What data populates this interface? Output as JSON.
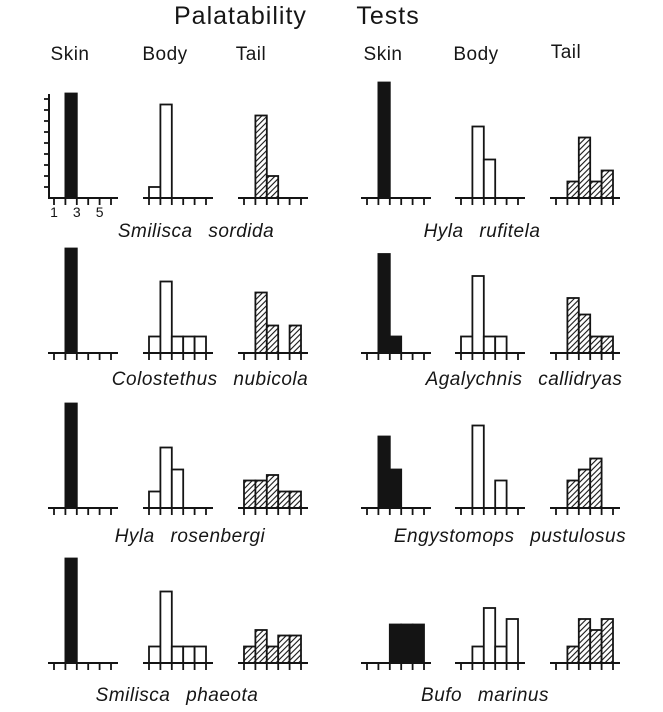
{
  "figure": {
    "title": "Palatability Tests",
    "column_headers": [
      "Skin",
      "Body",
      "Tail"
    ],
    "x_tick_labels": [
      "1",
      "3",
      "5"
    ]
  },
  "colors": {
    "ink": "#141414",
    "paper": "#ffffff"
  },
  "chart_data": {
    "type": "bar",
    "subtype": "histogram-small-multiples",
    "title": "Palatability Tests",
    "tests": [
      "Skin",
      "Body",
      "Tail"
    ],
    "bar_styles": {
      "Skin": "solid black fill",
      "Body": "open white fill",
      "Tail": "diagonal hatch fill"
    },
    "x_axis": {
      "ticks": [
        1,
        2,
        3,
        4,
        5,
        6
      ],
      "labeled_ticks": [
        1,
        3,
        5
      ],
      "tick_labels": [
        "1",
        "3",
        "5"
      ]
    },
    "y_axis": {
      "unlabeled_tick_count": 9,
      "range": [
        0,
        10.5
      ],
      "shown_on_first_panel_only": true
    },
    "legend": "none",
    "grid": false,
    "species": [
      {
        "name": "Smilisca sordida",
        "skin": [
          [
            2,
            9.5
          ]
        ],
        "body": [
          [
            1,
            1
          ],
          [
            2,
            8.5
          ]
        ],
        "tail": [
          [
            2,
            7.5
          ],
          [
            3,
            2
          ]
        ]
      },
      {
        "name": "Hyla rufitela",
        "skin": [
          [
            2,
            10.5
          ]
        ],
        "body": [
          [
            2,
            6.5
          ],
          [
            3,
            3.5
          ]
        ],
        "tail": [
          [
            2,
            1.5
          ],
          [
            3,
            5.5
          ],
          [
            4,
            1.5
          ],
          [
            5,
            2.5
          ]
        ]
      },
      {
        "name": "Colostethus nubicola",
        "skin": [
          [
            2,
            9.5
          ]
        ],
        "body": [
          [
            1,
            1.5
          ],
          [
            2,
            6.5
          ],
          [
            3,
            1.5
          ],
          [
            4,
            1.5
          ],
          [
            5,
            1.5
          ]
        ],
        "tail": [
          [
            2,
            5.5
          ],
          [
            3,
            2.5
          ],
          [
            5,
            2.5
          ]
        ]
      },
      {
        "name": "Agalychnis callidryas",
        "skin": [
          [
            2,
            9
          ],
          [
            3,
            1.5
          ]
        ],
        "body": [
          [
            1,
            1.5
          ],
          [
            2,
            7
          ],
          [
            3,
            1.5
          ],
          [
            4,
            1.5
          ]
        ],
        "tail": [
          [
            2,
            5
          ],
          [
            3,
            3.5
          ],
          [
            4,
            1.5
          ],
          [
            5,
            1.5
          ]
        ]
      },
      {
        "name": "Hyla rosenbergi",
        "skin": [
          [
            2,
            9.5
          ]
        ],
        "body": [
          [
            1,
            1.5
          ],
          [
            2,
            5.5
          ],
          [
            3,
            3.5
          ]
        ],
        "tail": [
          [
            1,
            2.5
          ],
          [
            2,
            2.5
          ],
          [
            3,
            3
          ],
          [
            4,
            1.5
          ],
          [
            5,
            1.5
          ]
        ]
      },
      {
        "name": "Engystomops pustulosus",
        "skin": [
          [
            2,
            6.5
          ],
          [
            3,
            3.5
          ]
        ],
        "body": [
          [
            2,
            7.5
          ],
          [
            4,
            2.5
          ]
        ],
        "tail": [
          [
            2,
            2.5
          ],
          [
            3,
            3.5
          ],
          [
            4,
            4.5
          ]
        ]
      },
      {
        "name": "Smilisca phaeota",
        "skin": [
          [
            2,
            9.5
          ]
        ],
        "body": [
          [
            1,
            1.5
          ],
          [
            2,
            6.5
          ],
          [
            3,
            1.5
          ],
          [
            4,
            1.5
          ],
          [
            5,
            1.5
          ]
        ],
        "tail": [
          [
            1,
            1.5
          ],
          [
            2,
            3
          ],
          [
            3,
            1.5
          ],
          [
            4,
            2.5
          ],
          [
            5,
            2.5
          ]
        ]
      },
      {
        "name": "Bufo marinus",
        "skin": [
          [
            3,
            3.5
          ],
          [
            4,
            3.5
          ],
          [
            5,
            3.5
          ]
        ],
        "body": [
          [
            2,
            1.5
          ],
          [
            3,
            5
          ],
          [
            4,
            1.5
          ],
          [
            5,
            4
          ]
        ],
        "tail": [
          [
            2,
            1.5
          ],
          [
            3,
            4
          ],
          [
            4,
            3
          ],
          [
            5,
            4
          ]
        ]
      }
    ]
  }
}
